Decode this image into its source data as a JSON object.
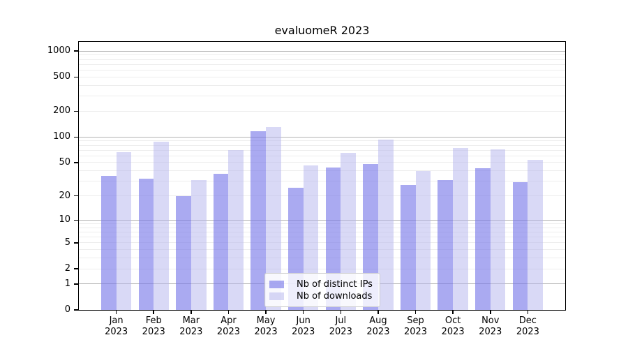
{
  "title": "evaluomeR 2023",
  "chart_data": {
    "type": "bar",
    "title": "evaluomeR 2023",
    "categories": [
      "Jan 2023",
      "Feb 2023",
      "Mar 2023",
      "Apr 2023",
      "May 2023",
      "Jun 2023",
      "Jul 2023",
      "Aug 2023",
      "Sep 2023",
      "Oct 2023",
      "Nov 2023",
      "Dec 2023"
    ],
    "series": [
      {
        "name": "Nb of distinct IPs",
        "color_hex": "#aaaaf0",
        "fill": "rgba(118,118,232,0.62)",
        "values": [
          35,
          32,
          20,
          37,
          118,
          25,
          44,
          48,
          27,
          31,
          43,
          29
        ]
      },
      {
        "name": "Nb of downloads",
        "color_hex": "#d9d9f6",
        "fill": "rgba(179,179,237,0.5)",
        "values": [
          67,
          89,
          31,
          70,
          132,
          46,
          65,
          93,
          40,
          75,
          71,
          54
        ]
      }
    ],
    "yscale": "log1p",
    "ylim": [
      0,
      1280
    ],
    "yticks": [
      1000,
      500,
      200,
      100,
      50,
      20,
      10,
      5,
      2,
      1,
      0
    ],
    "grid": "horizontal, log minor + major decades",
    "legend_position": "lower center",
    "xlabel": "",
    "ylabel": ""
  },
  "colors": {
    "major_grid": "#b3b3b3",
    "minor_grid": "#ededed",
    "axis": "#000000",
    "background": "#ffffff"
  }
}
